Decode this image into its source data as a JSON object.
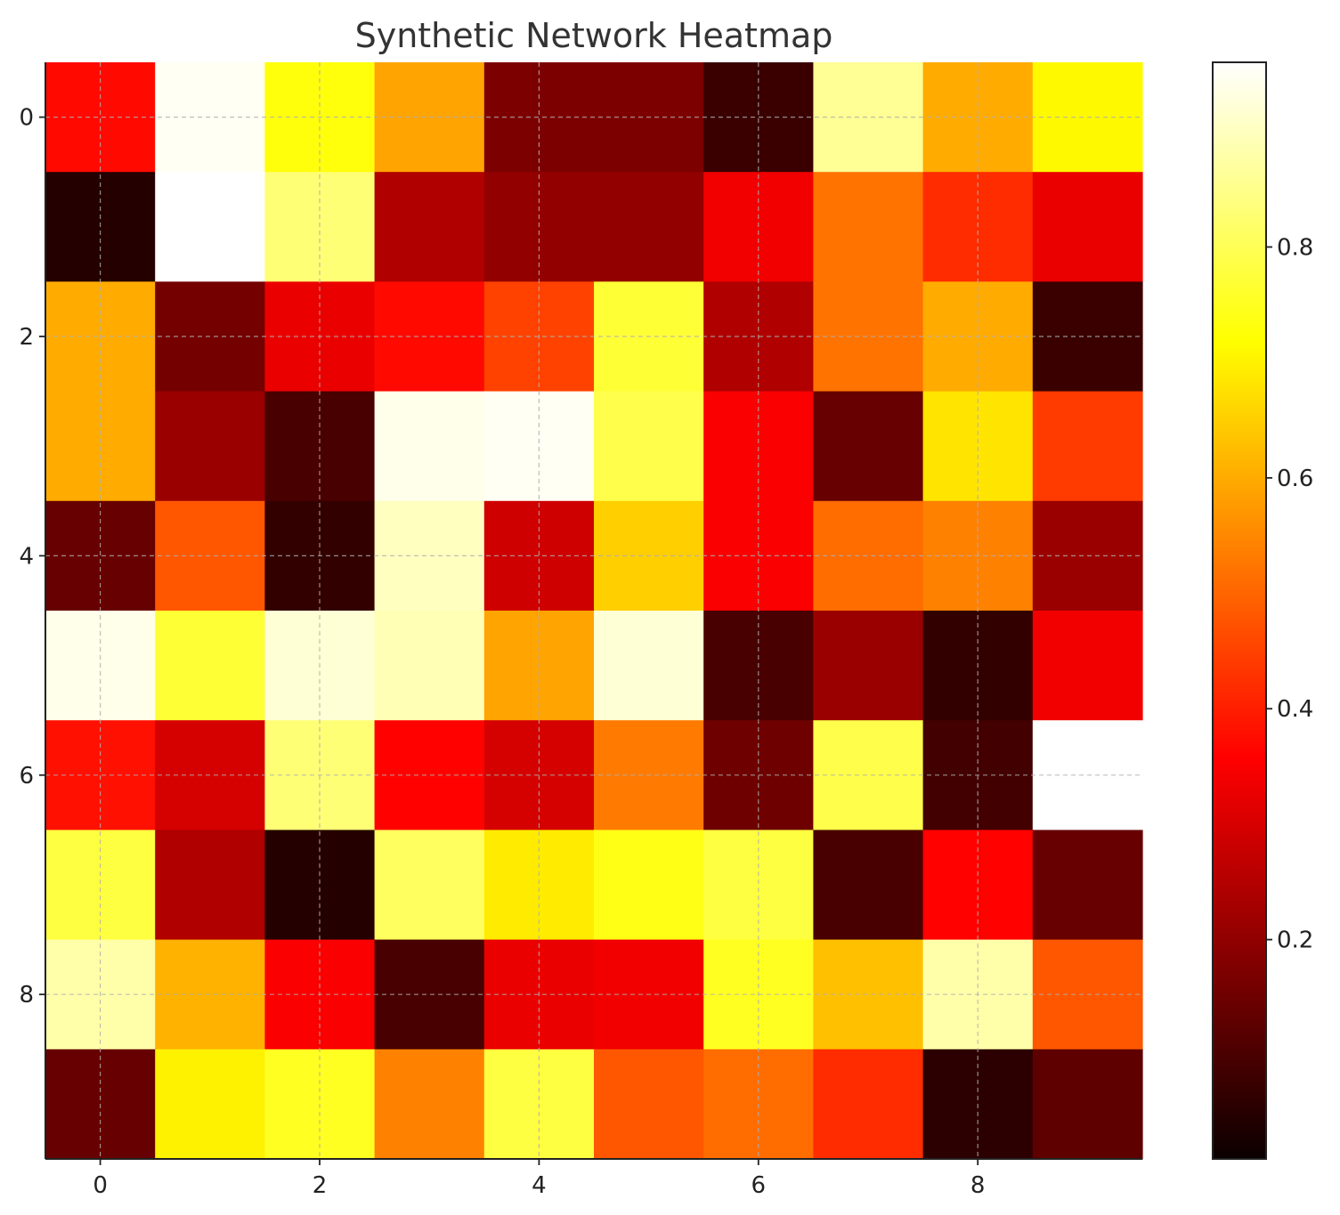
{
  "chart_data": {
    "type": "heatmap",
    "title": "Synthetic Network Heatmap",
    "xlabel": "",
    "ylabel": "",
    "colormap": "hot",
    "rows": 10,
    "cols": 10,
    "x_ticks": [
      0,
      2,
      4,
      6,
      8
    ],
    "y_ticks": [
      0,
      2,
      4,
      6,
      8
    ],
    "colorbar": {
      "range": [
        0.01,
        0.96
      ],
      "ticks": [
        0.2,
        0.4,
        0.6,
        0.8
      ],
      "tick_labels": [
        "0.2",
        "0.4",
        "0.6",
        "0.8"
      ]
    },
    "grid": true,
    "values": [
      [
        0.37,
        0.95,
        0.73,
        0.59,
        0.14,
        0.14,
        0.05,
        0.86,
        0.6,
        0.71
      ],
      [
        0.02,
        0.96,
        0.83,
        0.21,
        0.17,
        0.17,
        0.3,
        0.52,
        0.42,
        0.29
      ],
      [
        0.6,
        0.13,
        0.29,
        0.37,
        0.45,
        0.77,
        0.21,
        0.52,
        0.6,
        0.05
      ],
      [
        0.6,
        0.18,
        0.07,
        0.94,
        0.95,
        0.79,
        0.31,
        0.11,
        0.68,
        0.44
      ],
      [
        0.11,
        0.48,
        0.04,
        0.9,
        0.25,
        0.65,
        0.31,
        0.51,
        0.54,
        0.18
      ],
      [
        0.94,
        0.77,
        0.92,
        0.89,
        0.59,
        0.92,
        0.07,
        0.18,
        0.04,
        0.3
      ],
      [
        0.38,
        0.26,
        0.83,
        0.36,
        0.26,
        0.53,
        0.12,
        0.79,
        0.06,
        0.96
      ],
      [
        0.78,
        0.21,
        0.02,
        0.81,
        0.69,
        0.74,
        0.78,
        0.07,
        0.36,
        0.11
      ],
      [
        0.88,
        0.61,
        0.31,
        0.07,
        0.29,
        0.3,
        0.75,
        0.63,
        0.88,
        0.48
      ],
      [
        0.11,
        0.7,
        0.75,
        0.54,
        0.78,
        0.48,
        0.51,
        0.42,
        0.03,
        0.1
      ]
    ]
  }
}
